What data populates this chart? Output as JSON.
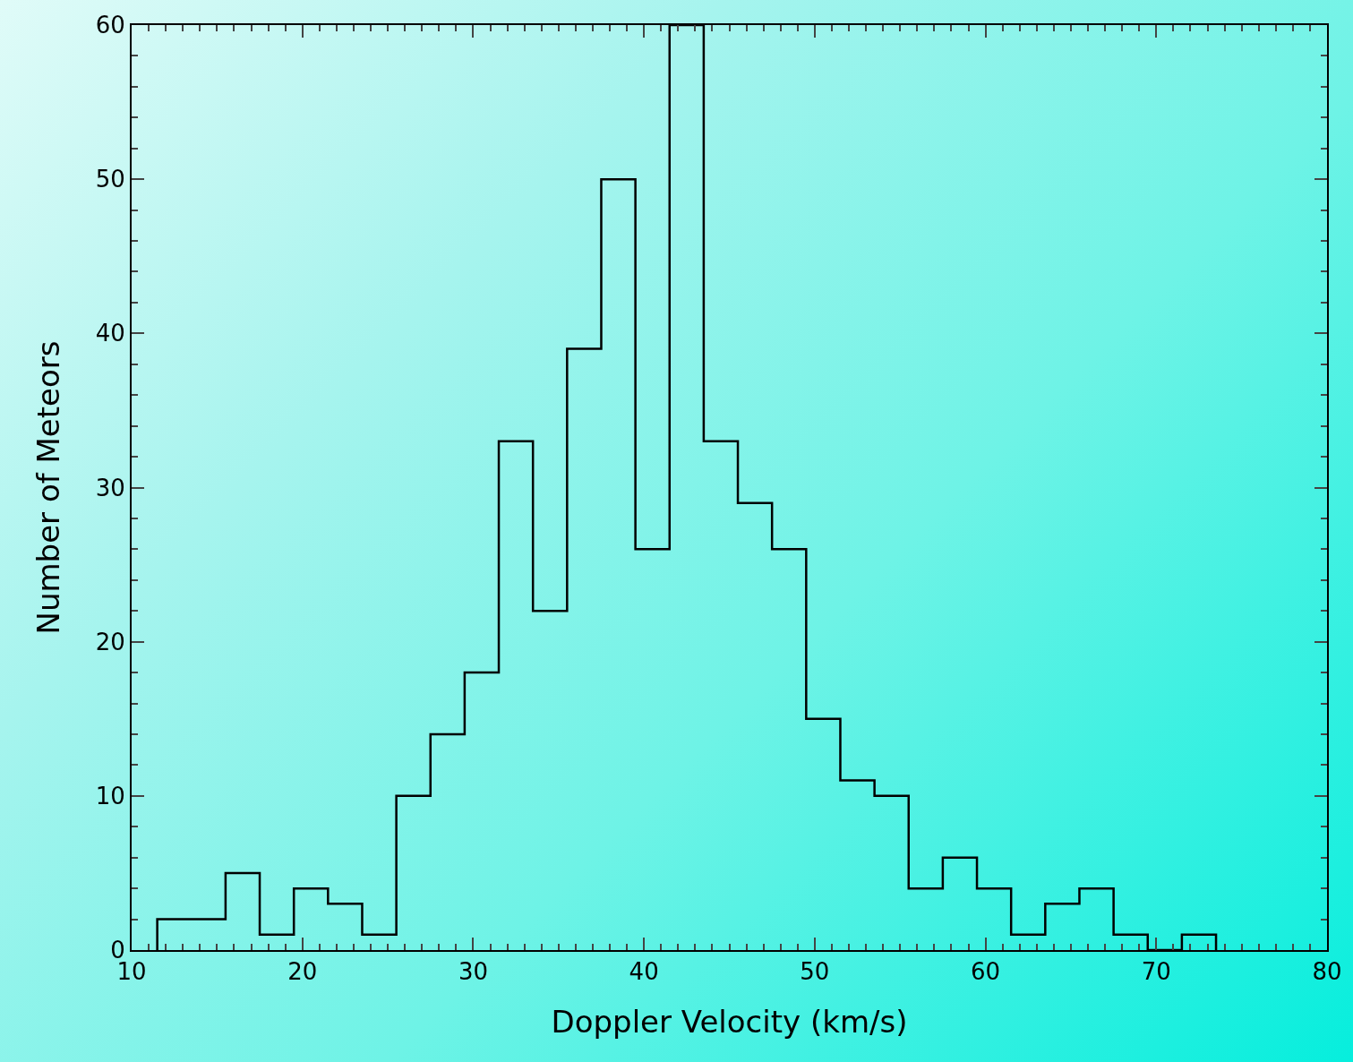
{
  "chart_data": {
    "type": "histogram",
    "xlabel": "Doppler Velocity (km/s)",
    "ylabel": "Number of Meteors",
    "bins": [
      11.5,
      13.5,
      15.5,
      17.5,
      19.5,
      21.5,
      23.5,
      25.5,
      27.5,
      29.5,
      31.5,
      33.5,
      35.5,
      37.5,
      39.5,
      41.5,
      43.5,
      45.5,
      47.5,
      49.5,
      51.5,
      53.5,
      55.5,
      57.5,
      59.5,
      61.5,
      63.5,
      65.5,
      67.5,
      69.5,
      71.5,
      73.5
    ],
    "values": [
      2,
      2,
      5,
      1,
      4,
      3,
      1,
      10,
      14,
      18,
      33,
      22,
      39,
      50,
      26,
      60,
      33,
      29,
      26,
      15,
      11,
      10,
      4,
      6,
      4,
      1,
      3,
      4,
      1,
      0,
      1
    ],
    "color": "#000000",
    "xlim": [
      10,
      80
    ],
    "xticks": [
      10,
      20,
      30,
      40,
      50,
      60,
      70,
      80
    ],
    "ylim": [
      0,
      60
    ],
    "yticks": [
      0,
      10,
      20,
      30,
      40,
      50,
      60
    ],
    "grid": false
  }
}
